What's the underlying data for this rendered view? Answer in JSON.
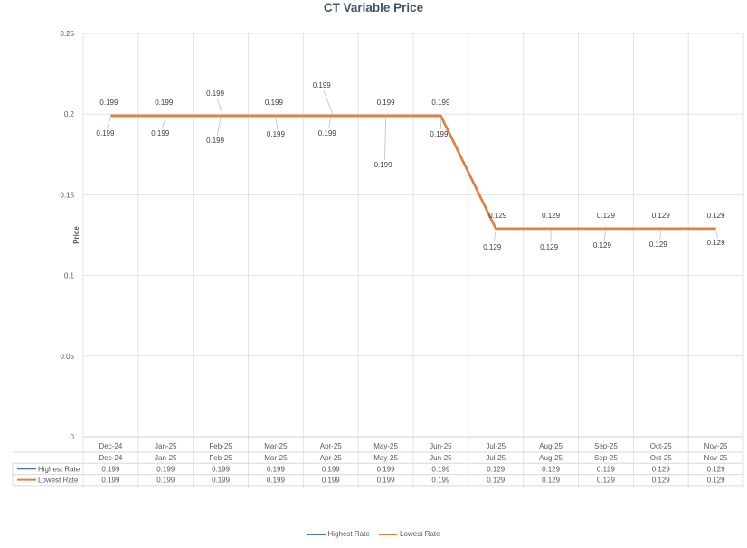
{
  "chart_data": {
    "type": "line",
    "title": "CT Variable Price",
    "xlabel": "",
    "ylabel": "Price",
    "categories": [
      "Dec-24",
      "Jan-25",
      "Feb-25",
      "Mar-25",
      "Apr-25",
      "May-25",
      "Jun-25",
      "Jul-25",
      "Aug-25",
      "Sep-25",
      "Oct-25",
      "Nov-25"
    ],
    "series": [
      {
        "name": "Highest Rate",
        "color": "#4472c4",
        "values": [
          0.199,
          0.199,
          0.199,
          0.199,
          0.199,
          0.199,
          0.199,
          0.129,
          0.129,
          0.129,
          0.129,
          0.129
        ]
      },
      {
        "name": "Lowest Rate",
        "color": "#ed7d31",
        "values": [
          0.199,
          0.199,
          0.199,
          0.199,
          0.199,
          0.199,
          0.199,
          0.129,
          0.129,
          0.129,
          0.129,
          0.129
        ]
      }
    ],
    "ylim": [
      0,
      0.25
    ],
    "yticks": [
      "0",
      "0.05",
      "0.1",
      "0.15",
      "0.2",
      "0.25"
    ],
    "grid": true,
    "data_labels": true,
    "data_table": true,
    "legend_position": "bottom"
  }
}
